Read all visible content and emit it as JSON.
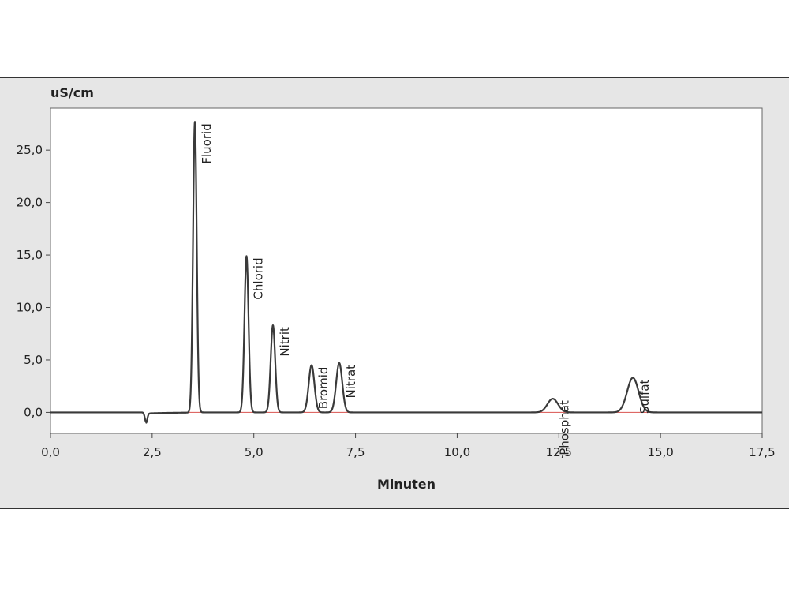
{
  "chart_data": {
    "type": "line",
    "ylabel": "uS/cm",
    "xlabel": "Minuten",
    "xlim": [
      0,
      17.5
    ],
    "ylim": [
      -2,
      29
    ],
    "x_ticks": [
      "0,0",
      "2,5",
      "5,0",
      "7,5",
      "10,0",
      "12,5",
      "15,0",
      "17,5"
    ],
    "x_tick_values": [
      0,
      2.5,
      5,
      7.5,
      10,
      12.5,
      15,
      17.5
    ],
    "y_ticks": [
      "0,0",
      "5,0",
      "10,0",
      "15,0",
      "20,0",
      "25,0"
    ],
    "y_tick_values": [
      0,
      5,
      10,
      15,
      20,
      25
    ],
    "grid": false,
    "colors": {
      "signal": "#3a3a3a",
      "baseline": "#d9534f",
      "panel": "#e6e6e6",
      "plot": "#ffffff"
    },
    "dip": {
      "x": 2.35,
      "y": -0.9
    },
    "peaks": [
      {
        "name": "Fluorid",
        "x": 3.55,
        "y": 27.7
      },
      {
        "name": "Chlorid",
        "x": 4.82,
        "y": 14.9
      },
      {
        "name": "Nitrit",
        "x": 5.47,
        "y": 8.3
      },
      {
        "name": "Bromid",
        "x": 6.42,
        "y": 4.5
      },
      {
        "name": "Nitrat",
        "x": 7.1,
        "y": 4.7
      },
      {
        "name": "Phosphat",
        "x": 12.35,
        "y": 1.3
      },
      {
        "name": "Sulfat",
        "x": 14.32,
        "y": 3.3
      }
    ]
  }
}
